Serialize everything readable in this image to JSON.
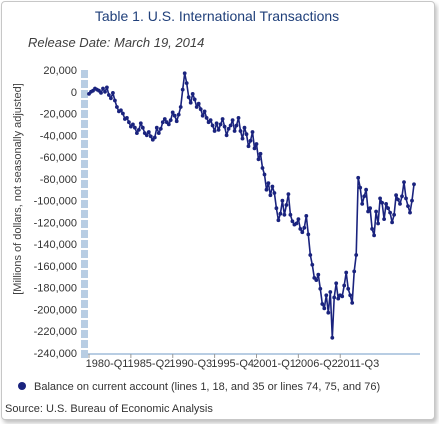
{
  "title": "Table 1. U.S. International Transactions",
  "release": "Release Date: March 19, 2014",
  "source": "Source: U.S. Bureau of Economic Analysis",
  "colors": {
    "line": "#1a237e",
    "title": "#1f3f7a",
    "axis_band": "#b8cde3"
  },
  "chart_data": {
    "type": "line",
    "title": "Table 1. U.S. International Transactions",
    "ylabel": "[Millions of dollars, not seasonally adjusted]",
    "xlabel": "",
    "ylim": [
      -240000,
      20000
    ],
    "yticks": [
      20000,
      0,
      -20000,
      -40000,
      -60000,
      -80000,
      -100000,
      -120000,
      -140000,
      -160000,
      -180000,
      -200000,
      -220000,
      -240000
    ],
    "ytick_labels": [
      "20,000",
      "0",
      "-20,000",
      "-40,000",
      "-60,000",
      "-80,000",
      "-100,000",
      "-120,000",
      "-140,000",
      "-160,000",
      "-180,000",
      "-200,000",
      "-220,000",
      "-240,000"
    ],
    "xtick_labels": [
      "1980-Q1",
      "1985-Q2",
      "1990-Q3",
      "1995-Q4",
      "2001-Q1",
      "2006-Q2",
      "2011-Q3"
    ],
    "grid": false,
    "legend_position": "bottom",
    "series": [
      {
        "name": "Balance on current account (lines 1, 18, and 35 or lines 74, 75, and 76)",
        "start": "1980-Q1",
        "frequency": "quarterly",
        "marker": "circle",
        "values": [
          -2000,
          0,
          1000,
          3000,
          2000,
          1000,
          -1000,
          3000,
          0,
          4000,
          -3000,
          -6000,
          -1000,
          -8000,
          -14000,
          -18000,
          -17000,
          -20000,
          -25000,
          -24000,
          -28000,
          -32000,
          -30000,
          -33000,
          -38000,
          -35000,
          -29000,
          -33000,
          -38000,
          -40000,
          -37000,
          -41000,
          -44000,
          -42000,
          -33000,
          -38000,
          -34000,
          -28000,
          -25000,
          -28000,
          -30000,
          -26000,
          -19000,
          -22000,
          -27000,
          -21000,
          -14000,
          2000,
          17000,
          8000,
          -5000,
          -10000,
          -2000,
          -7000,
          -14000,
          -11000,
          -16000,
          -22000,
          -18000,
          -24000,
          -28000,
          -26000,
          -31000,
          -36000,
          -29000,
          -35000,
          -30000,
          -25000,
          -32000,
          -40000,
          -34000,
          -31000,
          -26000,
          -36000,
          -31000,
          -24000,
          -36000,
          -43000,
          -33000,
          -39000,
          -50000,
          -45000,
          -37000,
          -52000,
          -48000,
          -62000,
          -57000,
          -70000,
          -76000,
          -90000,
          -84000,
          -95000,
          -87000,
          -93000,
          -107000,
          -118000,
          -112000,
          -100000,
          -113000,
          -104000,
          -94000,
          -113000,
          -119000,
          -122000,
          -121000,
          -117000,
          -126000,
          -129000,
          -125000,
          -114000,
          -131000,
          -150000,
          -159000,
          -171000,
          -173000,
          -168000,
          -181000,
          -195000,
          -199000,
          -187000,
          -203000,
          -184000,
          -226000,
          -189000,
          -176000,
          -190000,
          -187000,
          -188000,
          -178000,
          -166000,
          -181000,
          -187000,
          -194000,
          -165000,
          -150000,
          -79000,
          -88000,
          -103000,
          -96000,
          -90000,
          -110000,
          -107000,
          -126000,
          -132000,
          -110000,
          -121000,
          -98000,
          -102000,
          -117000,
          -103000,
          -107000,
          -111000,
          -120000,
          -113000,
          -95000,
          -99000,
          -103000,
          -96000,
          -83000,
          -98000,
          -105000,
          -111000,
          -100000,
          -85000
        ]
      }
    ]
  }
}
